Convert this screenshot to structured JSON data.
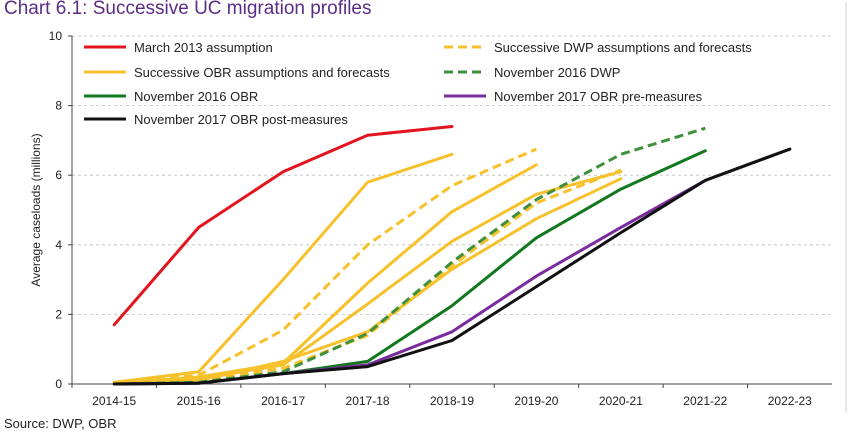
{
  "title": "Chart 6.1: Successive UC migration profiles",
  "source": "Source: DWP, OBR",
  "chart_data": {
    "type": "line",
    "categories": [
      "2014-15",
      "2015-16",
      "2016-17",
      "2017-18",
      "2018-19",
      "2019-20",
      "2020-21",
      "2021-22",
      "2022-23"
    ],
    "ylabel": "Average caseloads (millions)",
    "xlabel": "",
    "ylim": [
      0,
      10
    ],
    "yticks": [
      0,
      2,
      4,
      6,
      8,
      10
    ],
    "grid": "horizontal dashed",
    "legend_position": "top-inside",
    "series": [
      {
        "name": "March 2013 assumption",
        "color": "#e3141d",
        "dash": false,
        "legend": true,
        "values": [
          1.7,
          4.5,
          6.1,
          7.15,
          7.4,
          null,
          null,
          null,
          null
        ]
      },
      {
        "name": "Successive OBR assumptions and forecasts",
        "color": "#f7c12b",
        "dash": false,
        "legend": true,
        "values": [
          0.05,
          0.35,
          3.0,
          5.8,
          6.6,
          null,
          null,
          null,
          null
        ]
      },
      {
        "name": "",
        "color": "#f7c12b",
        "dash": false,
        "legend": false,
        "values": [
          0.02,
          0.2,
          0.6,
          2.9,
          4.95,
          6.3,
          null,
          null,
          null
        ]
      },
      {
        "name": "",
        "color": "#f7c12b",
        "dash": false,
        "legend": false,
        "values": [
          0.01,
          0.15,
          0.55,
          2.3,
          4.1,
          5.45,
          6.1,
          null,
          null
        ]
      },
      {
        "name": "",
        "color": "#f7c12b",
        "dash": false,
        "legend": false,
        "values": [
          0.0,
          0.1,
          0.65,
          1.5,
          3.3,
          4.75,
          5.9,
          null,
          null
        ]
      },
      {
        "name": "Successive DWP assumptions and forecasts",
        "color": "#f7c12b",
        "dash": true,
        "legend": true,
        "values": [
          0.03,
          0.25,
          1.55,
          4.0,
          5.7,
          6.75,
          null,
          null,
          null
        ]
      },
      {
        "name": "",
        "color": "#f7c12b",
        "dash": true,
        "legend": false,
        "values": [
          0.0,
          0.1,
          0.45,
          1.4,
          3.4,
          5.2,
          6.15,
          null,
          null
        ]
      },
      {
        "name": "November 2016 DWP",
        "color": "#3f8f3d",
        "dash": true,
        "legend": true,
        "values": [
          0.0,
          0.05,
          0.35,
          1.45,
          3.5,
          5.3,
          6.6,
          7.35,
          null
        ]
      },
      {
        "name": "November 2016 OBR",
        "color": "#12781f",
        "dash": false,
        "legend": true,
        "values": [
          0.0,
          0.03,
          0.3,
          0.65,
          2.25,
          4.2,
          5.6,
          6.7,
          null
        ]
      },
      {
        "name": "November 2017 OBR pre-measures",
        "color": "#7a2c9e",
        "dash": false,
        "legend": true,
        "values": [
          0.0,
          0.02,
          0.3,
          0.55,
          1.5,
          3.1,
          4.5,
          5.85,
          6.75
        ]
      },
      {
        "name": "November 2017 OBR post-measures",
        "color": "#111111",
        "dash": false,
        "legend": true,
        "values": [
          0.0,
          0.02,
          0.3,
          0.5,
          1.25,
          2.8,
          4.35,
          5.85,
          6.75
        ]
      }
    ]
  }
}
